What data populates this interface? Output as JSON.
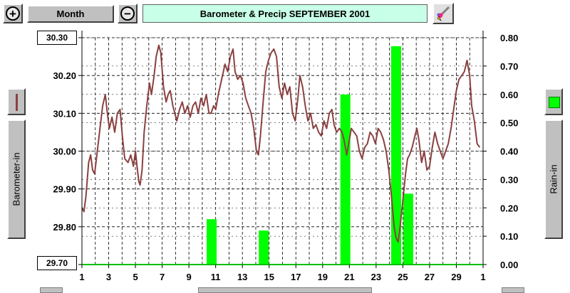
{
  "toolbar": {
    "zoom_in_glyph": "+",
    "zoom_out_glyph": "−",
    "period_label": "Month",
    "brush_icon": "paint-brush-icon"
  },
  "header": {
    "title": "Barometer & Precip   SEPTEMBER 2001"
  },
  "left_panel": {
    "axis_label": "Barometer-in",
    "line_color": "#8b4040"
  },
  "right_panel": {
    "axis_label": "Rain-in",
    "bar_color": "#00ff00"
  },
  "chart_data": {
    "type": "bar+line",
    "title": "Barometer & Precip   SEPTEMBER 2001",
    "x_tick_labels": [
      "1",
      "3",
      "5",
      "7",
      "9",
      "11",
      "13",
      "15",
      "17",
      "19",
      "21",
      "23",
      "25",
      "27",
      "29",
      "1"
    ],
    "x_range_days": [
      1,
      31
    ],
    "grid": true,
    "left_axis": {
      "label": "Barometer-in",
      "ylim": [
        29.7,
        30.3
      ],
      "tick_labels": [
        "30.30",
        "30.20",
        "30.10",
        "30.00",
        "29.90",
        "29.80",
        "29.70"
      ],
      "top_value": "30.30",
      "bottom_value": "29.70"
    },
    "right_axis": {
      "label": "Rain-in",
      "ylim": [
        0.0,
        0.8
      ],
      "tick_labels": [
        "0.80",
        "0.70",
        "0.60",
        "0.50",
        "0.40",
        "0.30",
        "0.20",
        "0.10",
        "0.00"
      ]
    },
    "series": [
      {
        "type": "line",
        "axis": "left",
        "color": "#8b4040",
        "points": [
          [
            1.0,
            29.85
          ],
          [
            1.15,
            29.84
          ],
          [
            1.3,
            29.88
          ],
          [
            1.5,
            29.97
          ],
          [
            1.65,
            29.99
          ],
          [
            1.8,
            29.95
          ],
          [
            1.95,
            29.94
          ],
          [
            2.15,
            30.0
          ],
          [
            2.35,
            30.06
          ],
          [
            2.55,
            30.12
          ],
          [
            2.75,
            30.15
          ],
          [
            2.9,
            30.1
          ],
          [
            3.05,
            30.06
          ],
          [
            3.25,
            30.09
          ],
          [
            3.45,
            30.05
          ],
          [
            3.65,
            30.1
          ],
          [
            3.85,
            30.11
          ],
          [
            4.05,
            30.03
          ],
          [
            4.2,
            29.98
          ],
          [
            4.45,
            29.97
          ],
          [
            4.65,
            29.99
          ],
          [
            4.85,
            29.96
          ],
          [
            5.0,
            30.0
          ],
          [
            5.15,
            29.95
          ],
          [
            5.25,
            29.92
          ],
          [
            5.35,
            29.91
          ],
          [
            5.5,
            29.95
          ],
          [
            5.65,
            30.05
          ],
          [
            5.85,
            30.12
          ],
          [
            6.05,
            30.18
          ],
          [
            6.2,
            30.15
          ],
          [
            6.4,
            30.2
          ],
          [
            6.55,
            30.25
          ],
          [
            6.75,
            30.28
          ],
          [
            6.9,
            30.26
          ],
          [
            7.1,
            30.17
          ],
          [
            7.3,
            30.13
          ],
          [
            7.45,
            30.15
          ],
          [
            7.6,
            30.16
          ],
          [
            7.8,
            30.12
          ],
          [
            7.95,
            30.1
          ],
          [
            8.1,
            30.08
          ],
          [
            8.3,
            30.11
          ],
          [
            8.5,
            30.13
          ],
          [
            8.7,
            30.1
          ],
          [
            8.9,
            30.12
          ],
          [
            9.1,
            30.09
          ],
          [
            9.3,
            30.12
          ],
          [
            9.5,
            30.13
          ],
          [
            9.7,
            30.1
          ],
          [
            9.9,
            30.14
          ],
          [
            10.1,
            30.12
          ],
          [
            10.3,
            30.15
          ],
          [
            10.5,
            30.1
          ],
          [
            10.65,
            30.1
          ],
          [
            10.85,
            30.12
          ],
          [
            11.0,
            30.11
          ],
          [
            11.2,
            30.15
          ],
          [
            11.45,
            30.19
          ],
          [
            11.7,
            30.23
          ],
          [
            11.9,
            30.21
          ],
          [
            12.1,
            30.25
          ],
          [
            12.3,
            30.27
          ],
          [
            12.45,
            30.21
          ],
          [
            12.65,
            30.19
          ],
          [
            12.85,
            30.2
          ],
          [
            13.05,
            30.18
          ],
          [
            13.25,
            30.14
          ],
          [
            13.45,
            30.12
          ],
          [
            13.65,
            30.1
          ],
          [
            13.85,
            30.06
          ],
          [
            14.05,
            30.0
          ],
          [
            14.2,
            29.99
          ],
          [
            14.35,
            30.04
          ],
          [
            14.55,
            30.13
          ],
          [
            14.75,
            30.21
          ],
          [
            14.95,
            30.24
          ],
          [
            15.15,
            30.26
          ],
          [
            15.35,
            30.27
          ],
          [
            15.55,
            30.25
          ],
          [
            15.75,
            30.17
          ],
          [
            15.95,
            30.14
          ],
          [
            16.15,
            30.18
          ],
          [
            16.35,
            30.15
          ],
          [
            16.55,
            30.17
          ],
          [
            16.75,
            30.1
          ],
          [
            16.95,
            30.08
          ],
          [
            17.15,
            30.14
          ],
          [
            17.3,
            30.2
          ],
          [
            17.5,
            30.17
          ],
          [
            17.7,
            30.12
          ],
          [
            17.9,
            30.08
          ],
          [
            18.1,
            30.1
          ],
          [
            18.3,
            30.06
          ],
          [
            18.5,
            30.07
          ],
          [
            18.7,
            30.05
          ],
          [
            18.9,
            30.04
          ],
          [
            19.1,
            30.08
          ],
          [
            19.3,
            30.06
          ],
          [
            19.5,
            30.1
          ],
          [
            19.7,
            30.11
          ],
          [
            19.85,
            30.07
          ],
          [
            20.05,
            30.05
          ],
          [
            20.25,
            30.06
          ],
          [
            20.45,
            30.05
          ],
          [
            20.6,
            30.03
          ],
          [
            20.8,
            29.99
          ],
          [
            20.95,
            30.02
          ],
          [
            21.15,
            30.06
          ],
          [
            21.35,
            30.05
          ],
          [
            21.55,
            30.04
          ],
          [
            21.75,
            30.0
          ],
          [
            21.95,
            29.98
          ],
          [
            22.15,
            30.01
          ],
          [
            22.35,
            30.02
          ],
          [
            22.55,
            30.05
          ],
          [
            22.75,
            30.04
          ],
          [
            22.95,
            30.02
          ],
          [
            23.15,
            30.06
          ],
          [
            23.35,
            30.05
          ],
          [
            23.55,
            30.03
          ],
          [
            23.75,
            30.0
          ],
          [
            23.95,
            29.95
          ],
          [
            24.15,
            29.88
          ],
          [
            24.35,
            29.8
          ],
          [
            24.5,
            29.77
          ],
          [
            24.65,
            29.76
          ],
          [
            24.8,
            29.8
          ],
          [
            25.0,
            29.87
          ],
          [
            25.2,
            29.94
          ],
          [
            25.35,
            29.98
          ],
          [
            25.5,
            29.99
          ],
          [
            25.7,
            30.01
          ],
          [
            25.9,
            30.04
          ],
          [
            26.05,
            30.06
          ],
          [
            26.2,
            30.03
          ],
          [
            26.4,
            29.97
          ],
          [
            26.6,
            30.0
          ],
          [
            26.8,
            29.95
          ],
          [
            27.0,
            29.96
          ],
          [
            27.2,
            30.01
          ],
          [
            27.4,
            30.05
          ],
          [
            27.6,
            30.02
          ],
          [
            27.8,
            30.0
          ],
          [
            28.0,
            29.98
          ],
          [
            28.2,
            30.0
          ],
          [
            28.4,
            30.02
          ],
          [
            28.6,
            30.06
          ],
          [
            28.8,
            30.11
          ],
          [
            29.0,
            30.16
          ],
          [
            29.2,
            30.19
          ],
          [
            29.4,
            30.2
          ],
          [
            29.6,
            30.21
          ],
          [
            29.8,
            30.24
          ],
          [
            30.0,
            30.2
          ],
          [
            30.15,
            30.12
          ],
          [
            30.35,
            30.08
          ],
          [
            30.55,
            30.02
          ],
          [
            30.75,
            30.01
          ]
        ]
      },
      {
        "type": "bar",
        "axis": "right",
        "color": "#00ff00",
        "bars": [
          {
            "day": 10.7,
            "value": 0.16
          },
          {
            "day": 14.6,
            "value": 0.12
          },
          {
            "day": 20.7,
            "value": 0.6
          },
          {
            "day": 24.5,
            "value": 0.77
          },
          {
            "day": 25.4,
            "value": 0.25
          }
        ]
      }
    ]
  }
}
